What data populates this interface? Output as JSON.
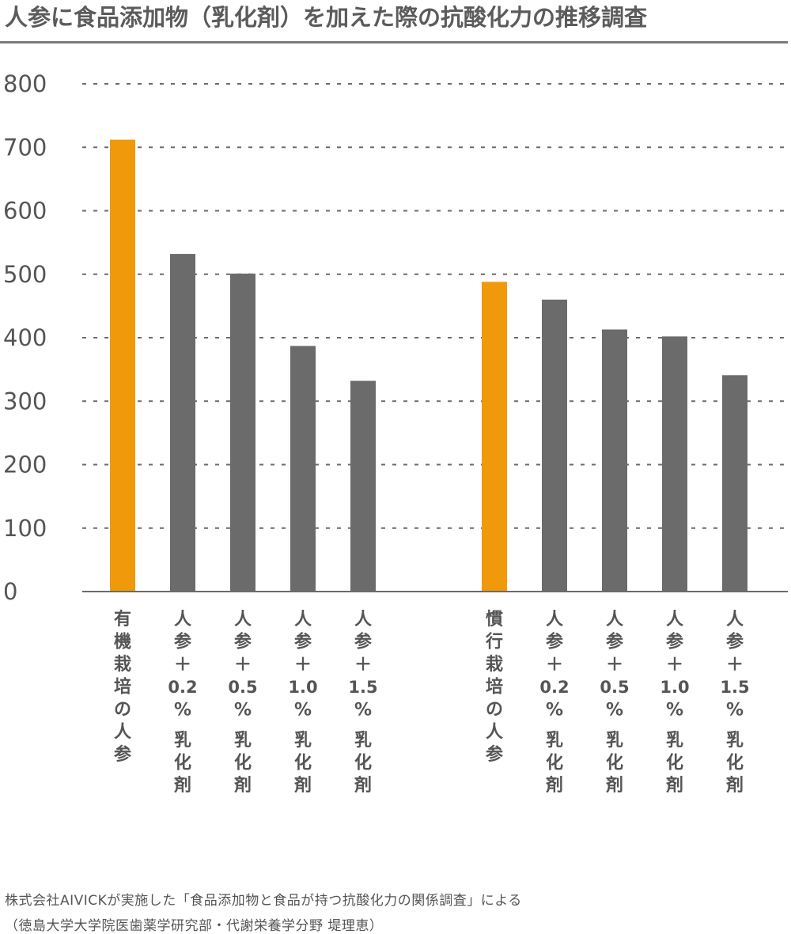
{
  "title": "人参に食品添加物（乳化剤）を加えた際の抗酸化力の推移調査",
  "chart_data": {
    "type": "bar",
    "title": "人参に食品添加物（乳化剤）を加えた際の抗酸化力の推移調査",
    "xlabel": "",
    "ylabel": "",
    "ylim": [
      0,
      800
    ],
    "yticks": [
      "0",
      "100",
      "200",
      "300",
      "400",
      "500",
      "600",
      "700",
      "800"
    ],
    "grid": true,
    "groups": [
      {
        "bars": [
          {
            "label": "有機栽培の人参",
            "value": 712,
            "color": "#f0990a"
          },
          {
            "label": "人参＋0.2%乳化剤",
            "value": 532,
            "color": "#6b6b6b"
          },
          {
            "label": "人参＋0.5%乳化剤",
            "value": 501,
            "color": "#6b6b6b"
          },
          {
            "label": "人参＋1.0%乳化剤",
            "value": 387,
            "color": "#6b6b6b"
          },
          {
            "label": "人参＋1.5%乳化剤",
            "value": 332,
            "color": "#6b6b6b"
          }
        ]
      },
      {
        "bars": [
          {
            "label": "慣行栽培の人参",
            "value": 488,
            "color": "#f0990a"
          },
          {
            "label": "人参＋0.2%乳化剤",
            "value": 460,
            "color": "#6b6b6b"
          },
          {
            "label": "人参＋0.5%乳化剤",
            "value": 413,
            "color": "#6b6b6b"
          },
          {
            "label": "人参＋1.0%乳化剤",
            "value": 402,
            "color": "#6b6b6b"
          },
          {
            "label": "人参＋1.5%乳化剤",
            "value": 341,
            "color": "#6b6b6b"
          }
        ]
      }
    ]
  },
  "credit": {
    "line1": "株式会社AIVICKが実施した「食品添加物と食品が持つ抗酸化力の関係調査」による",
    "line2": "（徳島大学大学院医歯薬学研究部・代謝栄養学分野 堤理恵）"
  },
  "colors": {
    "organic": "#f0990a",
    "additive": "#6b6b6b",
    "grid": "#6b6b6b",
    "text": "#555555"
  }
}
